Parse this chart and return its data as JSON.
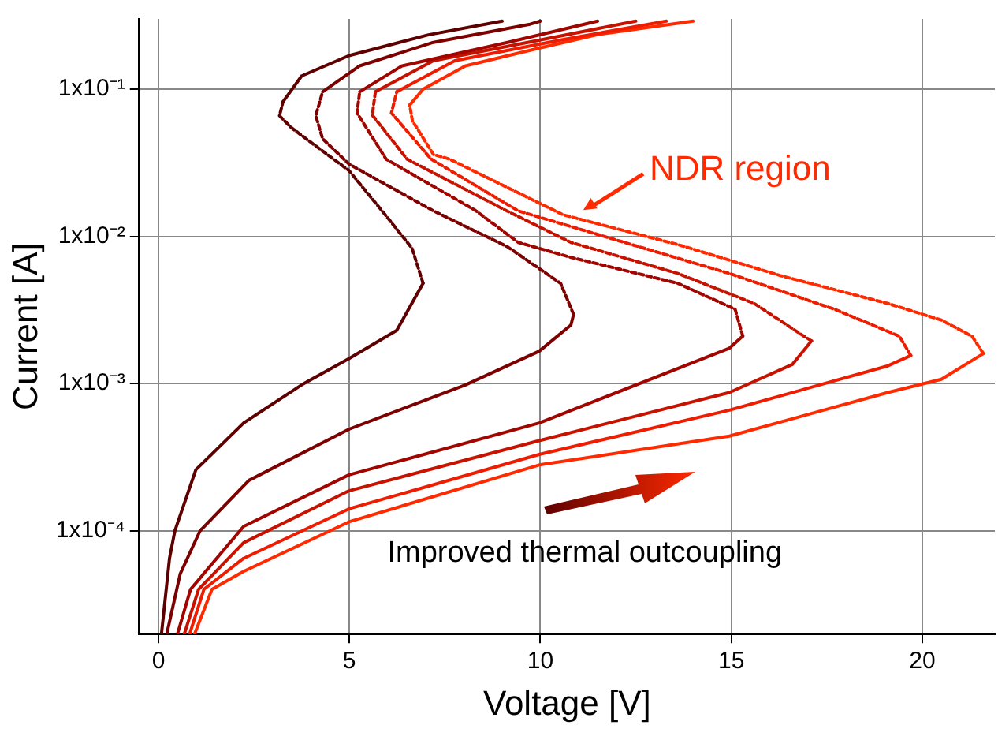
{
  "chart_data": {
    "type": "line",
    "xlabel": "Voltage [V]",
    "ylabel": "Current [A]",
    "log": "y",
    "grid": true,
    "legend": false,
    "marker": "none",
    "xlim": [
      -0.5,
      21.9
    ],
    "xticks": [
      0,
      5,
      10,
      15,
      20
    ],
    "ylim": [
      2e-05,
      0.3
    ],
    "yticks": [
      {
        "value": 0.0001,
        "label": "1x10⁻⁴"
      },
      {
        "value": 0.001,
        "label": "1x10⁻³"
      },
      {
        "value": 0.01,
        "label": "1x10⁻²"
      },
      {
        "value": 0.1,
        "label": "1x10⁻¹"
      }
    ],
    "annotations": [
      {
        "text": "NDR region",
        "x": 11,
        "y": 0.014
      },
      "Improved thermal outcoupling"
    ],
    "series": [
      {
        "color": "#5e0000",
        "line_style": "solid",
        "x": [
          0.08,
          0.29,
          0.43,
          0.98,
          2.23,
          3.75,
          4.99,
          6.24,
          6.93
        ],
        "values": [
          2e-05,
          6.5e-05,
          0.0001,
          0.00026,
          0.00054,
          0.00098,
          0.00148,
          0.0023,
          0.0048
        ]
      },
      {
        "color": "#5e0000",
        "line_style": "dashed",
        "x": [
          6.93,
          6.64,
          5.96,
          4.99,
          4.02,
          3.47,
          3.17,
          3.26
        ],
        "values": [
          0.0048,
          0.0083,
          0.0138,
          0.028,
          0.043,
          0.055,
          0.066,
          0.082
        ]
      },
      {
        "color": "#5e0000",
        "line_style": "solid",
        "x": [
          3.26,
          3.75,
          4.99,
          7.07,
          9.0
        ],
        "values": [
          0.082,
          0.123,
          0.169,
          0.234,
          0.29
        ]
      },
      {
        "color": "#7d0000",
        "line_style": "solid",
        "x": [
          0.22,
          0.57,
          1.09,
          2.37,
          4.99,
          8.04,
          9.97,
          10.8,
          10.87
        ],
        "values": [
          2e-05,
          5.1e-05,
          0.0001,
          0.00022,
          0.00049,
          0.00098,
          0.00166,
          0.0025,
          0.00295
        ]
      },
      {
        "color": "#7d0000",
        "line_style": "dashed",
        "x": [
          10.87,
          10.53,
          9.14,
          7.2,
          4.99,
          4.3,
          4.12,
          4.3
        ],
        "values": [
          0.00295,
          0.0048,
          0.0085,
          0.0149,
          0.031,
          0.046,
          0.066,
          0.096
        ]
      },
      {
        "color": "#7d0000",
        "line_style": "solid",
        "x": [
          4.3,
          5.27,
          7.2,
          9.7,
          10.0
        ],
        "values": [
          0.096,
          0.144,
          0.208,
          0.275,
          0.29
        ]
      },
      {
        "color": "#a00500",
        "line_style": "solid",
        "x": [
          0.5,
          0.84,
          2.23,
          4.99,
          9.97,
          14.95,
          15.3
        ],
        "values": [
          2e-05,
          4e-05,
          0.000107,
          0.00024,
          0.00054,
          0.00174,
          0.0021
        ]
      },
      {
        "color": "#a00500",
        "line_style": "dashed",
        "x": [
          15.3,
          15.1,
          13.6,
          10.8,
          9.42,
          8.3,
          5.96,
          5.2,
          5.27
        ],
        "values": [
          0.0021,
          0.0032,
          0.0048,
          0.0072,
          0.0091,
          0.015,
          0.0335,
          0.069,
          0.096
        ]
      },
      {
        "color": "#a00500",
        "line_style": "solid",
        "x": [
          5.27,
          6.38,
          9.14,
          11.5
        ],
        "values": [
          0.096,
          0.144,
          0.208,
          0.29
        ]
      },
      {
        "color": "#c81200",
        "line_style": "solid",
        "x": [
          0.68,
          1.05,
          2.23,
          4.99,
          9.97,
          14.95,
          16.6,
          17.1
        ],
        "values": [
          2e-05,
          4e-05,
          8.3e-05,
          0.000187,
          0.00041,
          0.00087,
          0.00135,
          0.00195
        ]
      },
      {
        "color": "#c81200",
        "line_style": "dashed",
        "x": [
          17.1,
          16.9,
          15.6,
          13.6,
          10.8,
          9.1,
          6.51,
          5.6,
          5.68
        ],
        "values": [
          0.00195,
          0.0021,
          0.0035,
          0.0056,
          0.0091,
          0.015,
          0.0335,
          0.0667,
          0.096
        ]
      },
      {
        "color": "#c81200",
        "line_style": "solid",
        "x": [
          5.68,
          7.2,
          9.96,
          12.5
        ],
        "values": [
          0.096,
          0.156,
          0.215,
          0.29
        ]
      },
      {
        "color": "#ee1c00",
        "line_style": "solid",
        "x": [
          0.82,
          1.19,
          2.23,
          4.99,
          9.97,
          14.95,
          19.1,
          19.7
        ],
        "values": [
          2e-05,
          4e-05,
          6.5e-05,
          0.000141,
          0.00033,
          0.00066,
          0.00132,
          0.00155
        ]
      },
      {
        "color": "#ee1c00",
        "line_style": "dashed",
        "x": [
          19.7,
          19.4,
          17.7,
          14.95,
          12.2,
          9.42,
          7.14,
          6.1,
          6.24
        ],
        "values": [
          0.00155,
          0.0021,
          0.0032,
          0.0056,
          0.0091,
          0.0149,
          0.0335,
          0.069,
          0.096
        ]
      },
      {
        "color": "#ee1c00",
        "line_style": "solid",
        "x": [
          6.24,
          7.76,
          10.5,
          13.3
        ],
        "values": [
          0.096,
          0.156,
          0.215,
          0.29
        ]
      },
      {
        "color": "#ff2a00",
        "line_style": "solid",
        "x": [
          0.95,
          1.4,
          2.23,
          4.99,
          9.97,
          14.95,
          19.1,
          20.5,
          21.6
        ],
        "values": [
          2e-05,
          4e-05,
          5.3e-05,
          0.000115,
          0.00028,
          0.00044,
          0.00087,
          0.00107,
          0.0016
        ]
      },
      {
        "color": "#ff2a00",
        "line_style": "dashed",
        "x": [
          21.6,
          21.3,
          20.5,
          19.1,
          16.3,
          13.6,
          10.6,
          7.62,
          7.2,
          6.65,
          6.58
        ],
        "values": [
          0.0016,
          0.0021,
          0.0027,
          0.0035,
          0.0054,
          0.0088,
          0.014,
          0.0335,
          0.036,
          0.061,
          0.078
        ]
      },
      {
        "color": "#ff2a00",
        "line_style": "solid",
        "x": [
          6.58,
          6.93,
          8.04,
          9.97,
          11.5,
          14.0
        ],
        "values": [
          0.078,
          0.1,
          0.144,
          0.19,
          0.235,
          0.29
        ]
      }
    ]
  }
}
